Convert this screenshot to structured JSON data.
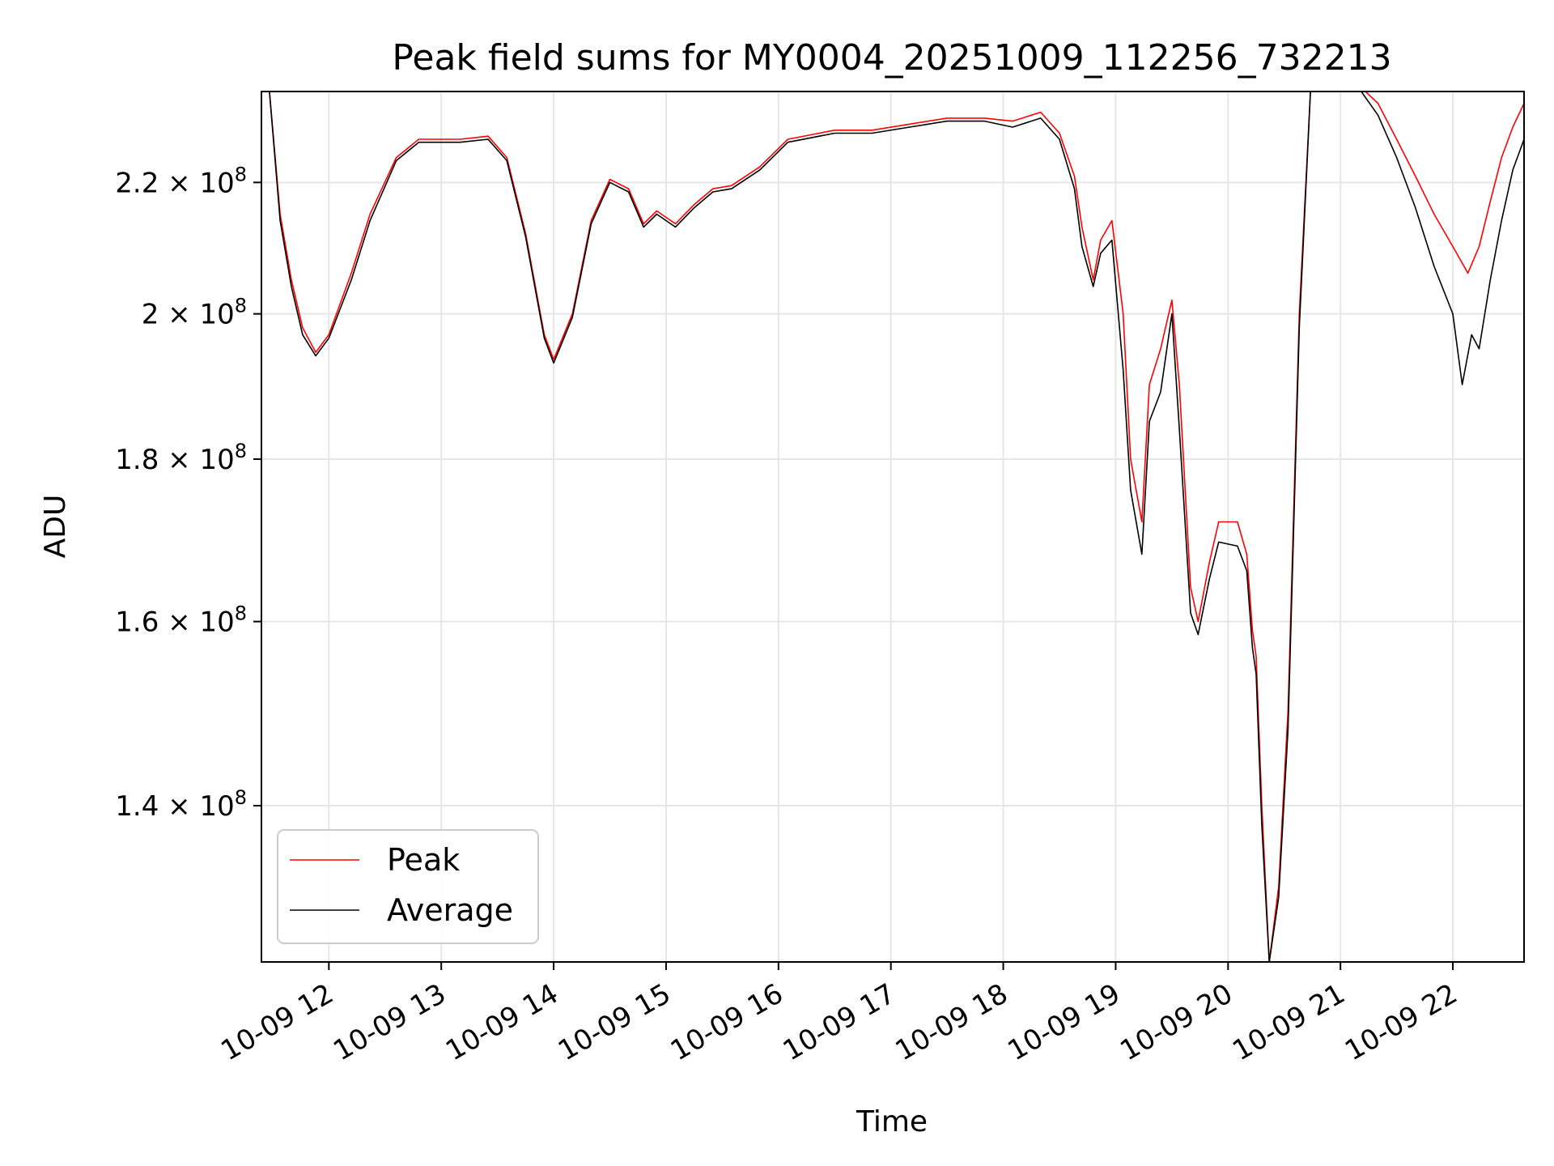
{
  "chart_data": {
    "type": "line",
    "title": "Peak field sums for MY0004_20251009_112256_732213",
    "xlabel": "Time",
    "ylabel": "ADU",
    "y_scale": "log",
    "ylim": [
      125000000,
      235000000
    ],
    "xlim": [
      "2025-10-09T11:24",
      "2025-10-09T22:38"
    ],
    "grid": true,
    "legend_position": "lower-left",
    "x_ticks": [
      {
        "t": "2025-10-09T12:00",
        "label": "10-09 12"
      },
      {
        "t": "2025-10-09T13:00",
        "label": "10-09 13"
      },
      {
        "t": "2025-10-09T14:00",
        "label": "10-09 14"
      },
      {
        "t": "2025-10-09T15:00",
        "label": "10-09 15"
      },
      {
        "t": "2025-10-09T16:00",
        "label": "10-09 16"
      },
      {
        "t": "2025-10-09T17:00",
        "label": "10-09 17"
      },
      {
        "t": "2025-10-09T18:00",
        "label": "10-09 18"
      },
      {
        "t": "2025-10-09T19:00",
        "label": "10-09 19"
      },
      {
        "t": "2025-10-09T20:00",
        "label": "10-09 20"
      },
      {
        "t": "2025-10-09T21:00",
        "label": "10-09 21"
      },
      {
        "t": "2025-10-09T22:00",
        "label": "10-09 22"
      }
    ],
    "y_ticks": [
      {
        "value": 140000000,
        "mantissa": "1.4",
        "exp": "8"
      },
      {
        "value": 160000000,
        "mantissa": "1.6",
        "exp": "8"
      },
      {
        "value": 180000000,
        "mantissa": "1.8",
        "exp": "8"
      },
      {
        "value": 200000000,
        "mantissa": "2",
        "exp": "8"
      },
      {
        "value": 220000000,
        "mantissa": "2.2",
        "exp": "8"
      }
    ],
    "series": [
      {
        "name": "Peak",
        "color": "#ff0000",
        "points": [
          [
            "2025-10-09T11:28",
            236000000
          ],
          [
            "2025-10-09T11:34",
            215000000
          ],
          [
            "2025-10-09T11:40",
            205000000
          ],
          [
            "2025-10-09T11:46",
            198000000
          ],
          [
            "2025-10-09T11:53",
            194500000
          ],
          [
            "2025-10-09T12:00",
            197000000
          ],
          [
            "2025-10-09T12:12",
            206000000
          ],
          [
            "2025-10-09T12:22",
            215000000
          ],
          [
            "2025-10-09T12:36",
            224000000
          ],
          [
            "2025-10-09T12:48",
            227000000
          ],
          [
            "2025-10-09T13:10",
            227000000
          ],
          [
            "2025-10-09T13:25",
            227500000
          ],
          [
            "2025-10-09T13:35",
            224000000
          ],
          [
            "2025-10-09T13:45",
            212000000
          ],
          [
            "2025-10-09T13:55",
            197000000
          ],
          [
            "2025-10-09T14:00",
            193500000
          ],
          [
            "2025-10-09T14:10",
            200000000
          ],
          [
            "2025-10-09T14:20",
            214000000
          ],
          [
            "2025-10-09T14:30",
            220500000
          ],
          [
            "2025-10-09T14:40",
            219000000
          ],
          [
            "2025-10-09T14:48",
            213500000
          ],
          [
            "2025-10-09T14:55",
            215500000
          ],
          [
            "2025-10-09T15:05",
            213500000
          ],
          [
            "2025-10-09T15:15",
            216500000
          ],
          [
            "2025-10-09T15:25",
            219000000
          ],
          [
            "2025-10-09T15:35",
            219500000
          ],
          [
            "2025-10-09T15:50",
            222500000
          ],
          [
            "2025-10-09T16:05",
            227000000
          ],
          [
            "2025-10-09T16:30",
            228500000
          ],
          [
            "2025-10-09T16:50",
            228500000
          ],
          [
            "2025-10-09T17:10",
            229500000
          ],
          [
            "2025-10-09T17:30",
            230500000
          ],
          [
            "2025-10-09T17:50",
            230500000
          ],
          [
            "2025-10-09T18:05",
            230000000
          ],
          [
            "2025-10-09T18:20",
            231500000
          ],
          [
            "2025-10-09T18:30",
            228000000
          ],
          [
            "2025-10-09T18:38",
            221000000
          ],
          [
            "2025-10-09T18:42",
            213000000
          ],
          [
            "2025-10-09T18:48",
            205000000
          ],
          [
            "2025-10-09T18:52",
            211000000
          ],
          [
            "2025-10-09T18:58",
            214000000
          ],
          [
            "2025-10-09T19:04",
            200000000
          ],
          [
            "2025-10-09T19:08",
            180000000
          ],
          [
            "2025-10-09T19:14",
            172000000
          ],
          [
            "2025-10-09T19:18",
            190000000
          ],
          [
            "2025-10-09T19:24",
            195000000
          ],
          [
            "2025-10-09T19:30",
            202000000
          ],
          [
            "2025-10-09T19:34",
            190000000
          ],
          [
            "2025-10-09T19:40",
            164000000
          ],
          [
            "2025-10-09T19:44",
            160000000
          ],
          [
            "2025-10-09T19:50",
            167000000
          ],
          [
            "2025-10-09T19:55",
            172000000
          ],
          [
            "2025-10-09T20:05",
            172000000
          ],
          [
            "2025-10-09T20:10",
            168000000
          ],
          [
            "2025-10-09T20:13",
            159000000
          ],
          [
            "2025-10-09T20:15",
            156000000
          ],
          [
            "2025-10-09T20:18",
            140000000
          ],
          [
            "2025-10-09T20:22",
            125000000
          ],
          [
            "2025-10-09T20:27",
            132000000
          ],
          [
            "2025-10-09T20:32",
            150000000
          ],
          [
            "2025-10-09T20:38",
            200000000
          ],
          [
            "2025-10-09T20:44",
            235000000
          ],
          [
            "2025-10-09T21:00",
            236000000
          ],
          [
            "2025-10-09T21:10",
            236000000
          ],
          [
            "2025-10-09T21:20",
            233000000
          ],
          [
            "2025-10-09T21:30",
            227000000
          ],
          [
            "2025-10-09T21:40",
            221000000
          ],
          [
            "2025-10-09T21:50",
            215000000
          ],
          [
            "2025-10-09T22:00",
            210000000
          ],
          [
            "2025-10-09T22:08",
            206000000
          ],
          [
            "2025-10-09T22:14",
            210000000
          ],
          [
            "2025-10-09T22:20",
            217000000
          ],
          [
            "2025-10-09T22:26",
            224000000
          ],
          [
            "2025-10-09T22:32",
            229000000
          ],
          [
            "2025-10-09T22:38",
            233000000
          ]
        ]
      },
      {
        "name": "Average",
        "color": "#000000",
        "points": [
          [
            "2025-10-09T11:28",
            236000000
          ],
          [
            "2025-10-09T11:34",
            214000000
          ],
          [
            "2025-10-09T11:40",
            204000000
          ],
          [
            "2025-10-09T11:46",
            197000000
          ],
          [
            "2025-10-09T11:53",
            194000000
          ],
          [
            "2025-10-09T12:00",
            196500000
          ],
          [
            "2025-10-09T12:12",
            205000000
          ],
          [
            "2025-10-09T12:22",
            214000000
          ],
          [
            "2025-10-09T12:36",
            223500000
          ],
          [
            "2025-10-09T12:48",
            226500000
          ],
          [
            "2025-10-09T13:10",
            226500000
          ],
          [
            "2025-10-09T13:25",
            227000000
          ],
          [
            "2025-10-09T13:35",
            223500000
          ],
          [
            "2025-10-09T13:45",
            211500000
          ],
          [
            "2025-10-09T13:55",
            196500000
          ],
          [
            "2025-10-09T14:00",
            193000000
          ],
          [
            "2025-10-09T14:10",
            199500000
          ],
          [
            "2025-10-09T14:20",
            213500000
          ],
          [
            "2025-10-09T14:30",
            220000000
          ],
          [
            "2025-10-09T14:40",
            218500000
          ],
          [
            "2025-10-09T14:48",
            213000000
          ],
          [
            "2025-10-09T14:55",
            215000000
          ],
          [
            "2025-10-09T15:05",
            213000000
          ],
          [
            "2025-10-09T15:15",
            216000000
          ],
          [
            "2025-10-09T15:25",
            218500000
          ],
          [
            "2025-10-09T15:35",
            219000000
          ],
          [
            "2025-10-09T15:50",
            222000000
          ],
          [
            "2025-10-09T16:05",
            226500000
          ],
          [
            "2025-10-09T16:30",
            228000000
          ],
          [
            "2025-10-09T16:50",
            228000000
          ],
          [
            "2025-10-09T17:10",
            229000000
          ],
          [
            "2025-10-09T17:30",
            230000000
          ],
          [
            "2025-10-09T17:50",
            230000000
          ],
          [
            "2025-10-09T18:05",
            229000000
          ],
          [
            "2025-10-09T18:20",
            230500000
          ],
          [
            "2025-10-09T18:30",
            227000000
          ],
          [
            "2025-10-09T18:38",
            219000000
          ],
          [
            "2025-10-09T18:42",
            210000000
          ],
          [
            "2025-10-09T18:48",
            204000000
          ],
          [
            "2025-10-09T18:52",
            209000000
          ],
          [
            "2025-10-09T18:58",
            211000000
          ],
          [
            "2025-10-09T19:04",
            192000000
          ],
          [
            "2025-10-09T19:08",
            176000000
          ],
          [
            "2025-10-09T19:14",
            168000000
          ],
          [
            "2025-10-09T19:18",
            185000000
          ],
          [
            "2025-10-09T19:24",
            189000000
          ],
          [
            "2025-10-09T19:30",
            200000000
          ],
          [
            "2025-10-09T19:34",
            184000000
          ],
          [
            "2025-10-09T19:40",
            161000000
          ],
          [
            "2025-10-09T19:44",
            158500000
          ],
          [
            "2025-10-09T19:50",
            165000000
          ],
          [
            "2025-10-09T19:55",
            169500000
          ],
          [
            "2025-10-09T20:05",
            169000000
          ],
          [
            "2025-10-09T20:10",
            166000000
          ],
          [
            "2025-10-09T20:13",
            157000000
          ],
          [
            "2025-10-09T20:15",
            154000000
          ],
          [
            "2025-10-09T20:18",
            138000000
          ],
          [
            "2025-10-09T20:22",
            125000000
          ],
          [
            "2025-10-09T20:27",
            131000000
          ],
          [
            "2025-10-09T20:32",
            148000000
          ],
          [
            "2025-10-09T20:38",
            198000000
          ],
          [
            "2025-10-09T20:44",
            235000000
          ],
          [
            "2025-10-09T21:00",
            235500000
          ],
          [
            "2025-10-09T21:10",
            235500000
          ],
          [
            "2025-10-09T21:20",
            231000000
          ],
          [
            "2025-10-09T21:30",
            224000000
          ],
          [
            "2025-10-09T21:40",
            216000000
          ],
          [
            "2025-10-09T21:50",
            207000000
          ],
          [
            "2025-10-09T22:00",
            200000000
          ],
          [
            "2025-10-09T22:05",
            190000000
          ],
          [
            "2025-10-09T22:10",
            197000000
          ],
          [
            "2025-10-09T22:14",
            195000000
          ],
          [
            "2025-10-09T22:20",
            205000000
          ],
          [
            "2025-10-09T22:26",
            214000000
          ],
          [
            "2025-10-09T22:32",
            222000000
          ],
          [
            "2025-10-09T22:38",
            227000000
          ]
        ]
      }
    ]
  }
}
